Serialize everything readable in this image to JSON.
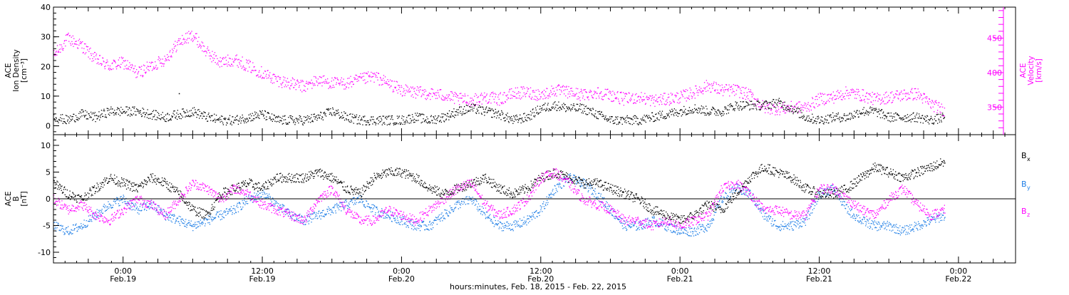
{
  "colors": {
    "axis": "#000000",
    "density": "#000000",
    "velocity": "#ff00ff",
    "bx": "#000000",
    "by": "#1e7ee6",
    "bz": "#ff00ff"
  },
  "chart_data": [
    {
      "type": "scatter",
      "panel": "top",
      "ylabel_lines": [
        "ACE",
        "Ion Density",
        "[cm⁻³]"
      ],
      "y2label_lines": [
        "ACE",
        "Velocity",
        "[km/s]"
      ],
      "ylim": [
        -3,
        40
      ],
      "yticks": [
        0,
        10,
        20,
        30,
        40
      ],
      "y2lim": [
        310,
        495
      ],
      "y2ticks": [
        350,
        400,
        450
      ],
      "xlim": [
        -0.25,
        3.205
      ],
      "series": [
        {
          "key": "density",
          "axis": "left",
          "x": [
            -0.25,
            -0.2,
            -0.15,
            -0.1,
            -0.05,
            0.0,
            0.05,
            0.1,
            0.15,
            0.2,
            0.25,
            0.3,
            0.35,
            0.4,
            0.45,
            0.5,
            0.55,
            0.6,
            0.65,
            0.7,
            0.75,
            0.8,
            0.85,
            0.9,
            0.95,
            1.0,
            1.05,
            1.1,
            1.15,
            1.2,
            1.25,
            1.3,
            1.35,
            1.4,
            1.45,
            1.5,
            1.55,
            1.6,
            1.65,
            1.7,
            1.75,
            1.8,
            1.85,
            1.9,
            1.95,
            2.0,
            2.05,
            2.1,
            2.15,
            2.2,
            2.25,
            2.3,
            2.35,
            2.4,
            2.45,
            2.5,
            2.55,
            2.6,
            2.65,
            2.7,
            2.75,
            2.8,
            2.85,
            2.9,
            2.95,
            3.0
          ],
          "values": [
            3,
            2,
            4,
            3,
            5,
            5,
            5,
            4,
            3,
            4,
            5,
            3,
            2,
            2,
            3,
            4,
            2,
            2,
            2,
            3,
            5,
            3,
            2,
            2,
            2,
            2,
            3,
            2,
            3,
            5,
            6,
            5,
            4,
            2,
            3,
            6,
            7,
            6,
            6,
            4,
            2,
            2,
            2,
            3,
            4,
            5,
            6,
            5,
            5,
            7,
            7,
            7,
            8,
            6,
            3,
            2,
            3,
            3,
            5,
            5,
            3,
            3,
            3,
            2,
            3,
            2
          ],
          "note": "scattered readings reaching about 11 near 0.2 and about 39 at 2.96"
        },
        {
          "key": "velocity",
          "axis": "right",
          "x": [
            -0.25,
            -0.2,
            -0.15,
            -0.1,
            -0.05,
            0.0,
            0.05,
            0.1,
            0.15,
            0.2,
            0.25,
            0.3,
            0.35,
            0.4,
            0.45,
            0.5,
            0.55,
            0.6,
            0.65,
            0.7,
            0.75,
            0.8,
            0.85,
            0.9,
            0.95,
            1.0,
            1.05,
            1.1,
            1.15,
            1.2,
            1.25,
            1.3,
            1.35,
            1.4,
            1.45,
            1.5,
            1.55,
            1.6,
            1.65,
            1.7,
            1.75,
            1.8,
            1.85,
            1.9,
            1.95,
            2.0,
            2.05,
            2.1,
            2.15,
            2.2,
            2.25,
            2.3,
            2.35,
            2.4,
            2.45,
            2.5,
            2.55,
            2.6,
            2.65,
            2.7,
            2.75,
            2.8,
            2.85,
            2.9,
            2.95,
            3.0
          ],
          "values": [
            425,
            450,
            440,
            420,
            410,
            415,
            400,
            410,
            420,
            445,
            455,
            430,
            415,
            420,
            410,
            400,
            390,
            385,
            380,
            390,
            385,
            385,
            390,
            395,
            385,
            375,
            372,
            370,
            368,
            362,
            360,
            365,
            362,
            370,
            372,
            368,
            375,
            372,
            368,
            372,
            368,
            362,
            365,
            360,
            362,
            365,
            372,
            382,
            375,
            375,
            368,
            350,
            348,
            350,
            350,
            362,
            365,
            372,
            368,
            362,
            365,
            368,
            370,
            355,
            345,
            355
          ]
        }
      ]
    },
    {
      "type": "scatter",
      "panel": "bottom",
      "ylabel_lines": [
        "ACE",
        "B",
        "[nT]"
      ],
      "ylim": [
        -12,
        12
      ],
      "yticks": [
        -10,
        -5,
        0,
        5,
        10
      ],
      "zero_line": true,
      "xlim": [
        -0.25,
        3.205
      ],
      "x_ticks": [
        {
          "x": 0,
          "time": "0:00",
          "date": "Feb.19"
        },
        {
          "x": 0.5,
          "time": "12:00",
          "date": "Feb.19"
        },
        {
          "x": 1,
          "time": "0:00",
          "date": "Feb.20"
        },
        {
          "x": 1.5,
          "time": "12:00",
          "date": "Feb.20"
        },
        {
          "x": 2,
          "time": "0:00",
          "date": "Feb.21"
        },
        {
          "x": 2.5,
          "time": "12:00",
          "date": "Feb.21"
        },
        {
          "x": 3,
          "time": "0:00",
          "date": "Feb.22"
        }
      ],
      "xlabel": "hours:minutes, Feb. 18, 2015 - Feb. 22, 2015",
      "legend": [
        {
          "key": "bx",
          "base": "B",
          "sub": "x"
        },
        {
          "key": "by",
          "base": "B",
          "sub": "y"
        },
        {
          "key": "bz",
          "base": "B",
          "sub": "z"
        }
      ],
      "legend_position": "right",
      "series": [
        {
          "key": "bx",
          "x": [
            -0.25,
            -0.2,
            -0.15,
            -0.1,
            -0.05,
            0.0,
            0.05,
            0.1,
            0.15,
            0.2,
            0.25,
            0.3,
            0.35,
            0.4,
            0.45,
            0.5,
            0.55,
            0.6,
            0.65,
            0.7,
            0.75,
            0.8,
            0.85,
            0.9,
            0.95,
            1.0,
            1.05,
            1.1,
            1.15,
            1.2,
            1.25,
            1.3,
            1.35,
            1.4,
            1.45,
            1.5,
            1.55,
            1.6,
            1.65,
            1.7,
            1.75,
            1.8,
            1.85,
            1.9,
            1.95,
            2.0,
            2.05,
            2.1,
            2.15,
            2.2,
            2.25,
            2.3,
            2.35,
            2.4,
            2.45,
            2.5,
            2.55,
            2.6,
            2.65,
            2.7,
            2.75,
            2.8,
            2.85,
            2.9,
            2.95,
            3.0
          ],
          "values": [
            3,
            1,
            0,
            2,
            4,
            3,
            2,
            4,
            3,
            1,
            -2,
            -3,
            1,
            2,
            3,
            2,
            4,
            4,
            4,
            5,
            4,
            2,
            1,
            4,
            5,
            5,
            4,
            2,
            1,
            2,
            3,
            4,
            2,
            1,
            2,
            4,
            5,
            4,
            3,
            3,
            2,
            1,
            0,
            -2,
            -3,
            -4,
            -3,
            -1,
            -2,
            1,
            4,
            6,
            5,
            4,
            2,
            1,
            1,
            2,
            4,
            6,
            5,
            4,
            5,
            6,
            7,
            6
          ]
        },
        {
          "key": "by",
          "x": [
            -0.25,
            -0.2,
            -0.15,
            -0.1,
            -0.05,
            0.0,
            0.05,
            0.1,
            0.15,
            0.2,
            0.25,
            0.3,
            0.35,
            0.4,
            0.45,
            0.5,
            0.55,
            0.6,
            0.65,
            0.7,
            0.75,
            0.8,
            0.85,
            0.9,
            0.95,
            1.0,
            1.05,
            1.1,
            1.15,
            1.2,
            1.25,
            1.3,
            1.35,
            1.4,
            1.45,
            1.5,
            1.55,
            1.6,
            1.65,
            1.7,
            1.75,
            1.8,
            1.85,
            1.9,
            1.95,
            2.0,
            2.05,
            2.1,
            2.15,
            2.2,
            2.25,
            2.3,
            2.35,
            2.4,
            2.45,
            2.5,
            2.55,
            2.6,
            2.65,
            2.7,
            2.75,
            2.8,
            2.85,
            2.9,
            2.95,
            3.0
          ],
          "values": [
            -5,
            -6,
            -5,
            -3,
            -1,
            0,
            -2,
            -1,
            -3,
            -4,
            -5,
            -4,
            -3,
            -2,
            0,
            1,
            -1,
            -3,
            -4,
            -3,
            -2,
            -1,
            0,
            -2,
            -3,
            -4,
            -5,
            -5,
            -3,
            -1,
            0,
            -3,
            -5,
            -5,
            -4,
            -2,
            2,
            4,
            3,
            1,
            -2,
            -5,
            -5,
            -4,
            -5,
            -6,
            -6,
            -5,
            0,
            2,
            1,
            -3,
            -5,
            -5,
            -4,
            1,
            2,
            -2,
            -4,
            -5,
            -5,
            -6,
            -5,
            -4,
            -3,
            -6
          ]
        },
        {
          "key": "bz",
          "x": [
            -0.25,
            -0.2,
            -0.15,
            -0.1,
            -0.05,
            0.0,
            0.05,
            0.1,
            0.15,
            0.2,
            0.25,
            0.3,
            0.35,
            0.4,
            0.45,
            0.5,
            0.55,
            0.6,
            0.65,
            0.7,
            0.75,
            0.8,
            0.85,
            0.9,
            0.95,
            1.0,
            1.05,
            1.1,
            1.15,
            1.2,
            1.25,
            1.3,
            1.35,
            1.4,
            1.45,
            1.5,
            1.55,
            1.6,
            1.65,
            1.7,
            1.75,
            1.8,
            1.85,
            1.9,
            1.95,
            2.0,
            2.05,
            2.1,
            2.15,
            2.2,
            2.25,
            2.3,
            2.35,
            2.4,
            2.45,
            2.5,
            2.55,
            2.6,
            2.65,
            2.7,
            2.75,
            2.8,
            2.85,
            2.9,
            2.95,
            3.0
          ],
          "values": [
            0,
            -2,
            -1,
            -3,
            -4,
            -2,
            0,
            -1,
            -3,
            0,
            3,
            2,
            0,
            2,
            1,
            -1,
            -2,
            -3,
            -4,
            0,
            2,
            -2,
            -4,
            -4,
            -2,
            -3,
            -4,
            -2,
            0,
            2,
            3,
            -1,
            -3,
            -2,
            0,
            4,
            5,
            3,
            0,
            -1,
            -2,
            -4,
            -4,
            -5,
            -4,
            -5,
            -4,
            -3,
            2,
            3,
            1,
            -2,
            -2,
            -3,
            -3,
            2,
            2,
            0,
            -2,
            -3,
            0,
            2,
            -1,
            -3,
            -2,
            1
          ]
        }
      ]
    }
  ]
}
